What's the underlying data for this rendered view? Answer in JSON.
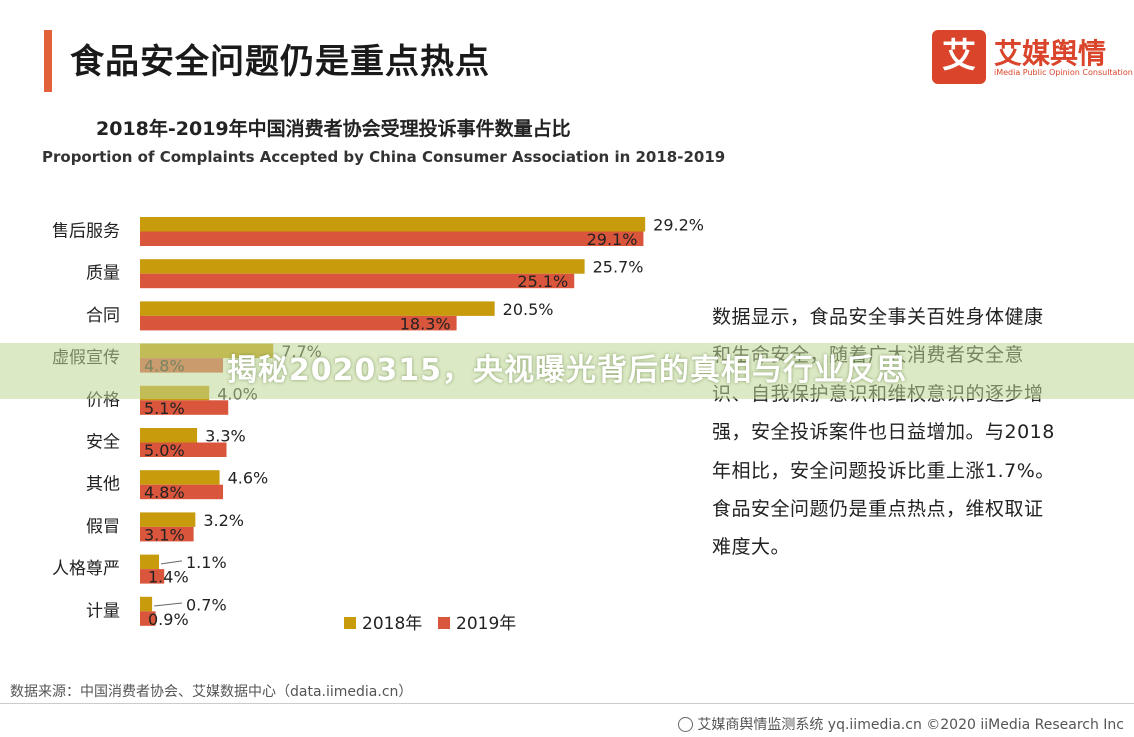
{
  "header": {
    "title": "食品安全问题仍是重点热点",
    "accent_color": "#e2603a"
  },
  "logo": {
    "mark": "艾",
    "name": "艾媒舆情",
    "subtitle": "iMedia Public Opinion Consultation",
    "color": "#d9442a"
  },
  "chart_data": {
    "type": "bar",
    "orientation": "horizontal",
    "title": "2018年-2019年中国消费者协会受理投诉事件数量占比",
    "subtitle": "Proportion of Complaints Accepted by China Consumer Association in 2018-2019",
    "categories": [
      "售后服务",
      "质量",
      "合同",
      "虚假宣传",
      "价格",
      "安全",
      "其他",
      "假冒",
      "人格尊严",
      "计量"
    ],
    "series": [
      {
        "name": "2018年",
        "color": "#c89b0c",
        "values": [
          29.2,
          25.7,
          20.5,
          7.7,
          4.0,
          3.3,
          4.6,
          3.2,
          1.1,
          0.7
        ],
        "labels": [
          "29.2%",
          "25.7%",
          "20.5%",
          "7.7%",
          "4.0%",
          "3.3%",
          "4.6%",
          "3.2%",
          "1.1%",
          "0.7%"
        ]
      },
      {
        "name": "2019年",
        "color": "#d9553c",
        "values": [
          29.1,
          25.1,
          18.3,
          4.8,
          5.1,
          5.0,
          4.8,
          3.1,
          1.4,
          0.9
        ],
        "labels": [
          "29.1%",
          "25.1%",
          "18.3%",
          "4.8%",
          "5.1%",
          "5.0%",
          "4.8%",
          "3.1%",
          "1.4%",
          "0.9%"
        ]
      }
    ],
    "xlim": [
      0,
      32
    ],
    "grid": false,
    "legend": "bottom-right"
  },
  "commentary": "数据显示，食品安全事关百姓身体健康和生命安全，随着广大消费者安全意识、自我保护意识和维权意识的逐步增强，安全投诉案件也日益增加。与2018年相比，安全问题投诉比重上涨1.7%。食品安全问题仍是重点热点，维权取证难度大。",
  "source": "数据来源：中国消费者协会、艾媒数据中心（data.iimedia.cn）",
  "footer": "艾媒商舆情监测系统 yq.iimedia.cn ©2020 iiMedia Research Inc",
  "banner": "揭秘2020315，央视曝光背后的真相与行业反思"
}
